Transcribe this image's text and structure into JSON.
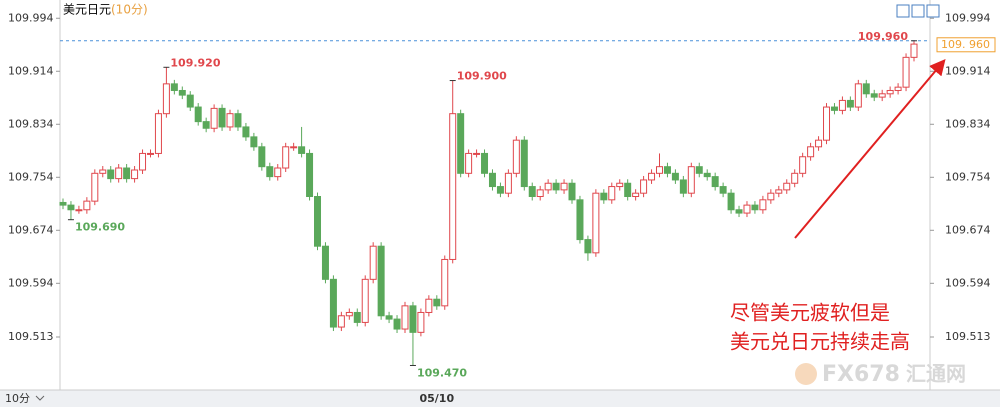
{
  "chart_data": {
    "type": "candlestick",
    "title": "美元日元",
    "subtitle": "(10分)",
    "interval_label": "10分",
    "ylim": [
      109.433,
      110.014
    ],
    "yticks": [
      109.994,
      109.914,
      109.834,
      109.754,
      109.674,
      109.594,
      109.513
    ],
    "up_color": "#e0474c",
    "down_color": "#5aa85a",
    "categories": [
      null,
      null,
      null,
      null,
      null,
      null,
      null,
      null,
      null,
      null,
      null,
      null,
      null,
      null,
      null,
      null,
      null,
      null,
      null,
      null,
      null,
      null,
      null,
      null,
      null,
      null,
      null,
      null,
      null,
      null,
      null,
      null,
      null,
      null,
      null,
      null,
      null,
      null,
      null,
      null,
      null,
      null,
      null,
      null,
      null,
      null,
      null,
      "05/10",
      null,
      null,
      null,
      null,
      null,
      null,
      null,
      null,
      null,
      null,
      null,
      null,
      null,
      null,
      null,
      null,
      null,
      null,
      null,
      null,
      null,
      null,
      null,
      null,
      null,
      null,
      null,
      null,
      null,
      null,
      null,
      null,
      null,
      null,
      null,
      null,
      null,
      null,
      null,
      null,
      null,
      null,
      null,
      null,
      null,
      null,
      null,
      null,
      null,
      null,
      null,
      null,
      null,
      null,
      null,
      null,
      null,
      null,
      null,
      null
    ],
    "values": [
      [
        109.716,
        109.722,
        109.706,
        109.712
      ],
      [
        109.712,
        109.718,
        109.69,
        109.705
      ],
      [
        109.705,
        109.711,
        109.699,
        109.705
      ],
      [
        109.705,
        109.724,
        109.699,
        109.718
      ],
      [
        109.718,
        109.766,
        109.712,
        109.76
      ],
      [
        109.76,
        109.771,
        109.754,
        109.765
      ],
      [
        109.765,
        109.771,
        109.746,
        109.752
      ],
      [
        109.752,
        109.774,
        109.746,
        109.768
      ],
      [
        109.768,
        109.774,
        109.746,
        109.752
      ],
      [
        109.752,
        109.771,
        109.746,
        109.765
      ],
      [
        109.765,
        109.796,
        109.759,
        109.79
      ],
      [
        109.79,
        109.796,
        109.784,
        109.79
      ],
      [
        109.79,
        109.856,
        109.784,
        109.85
      ],
      [
        109.85,
        109.92,
        109.844,
        109.895
      ],
      [
        109.895,
        109.901,
        109.879,
        109.885
      ],
      [
        109.885,
        109.891,
        109.872,
        109.878
      ],
      [
        109.878,
        109.884,
        109.854,
        109.86
      ],
      [
        109.86,
        109.866,
        109.832,
        109.838
      ],
      [
        109.838,
        109.844,
        109.822,
        109.828
      ],
      [
        109.828,
        109.864,
        109.822,
        109.858
      ],
      [
        109.858,
        109.864,
        109.824,
        109.83
      ],
      [
        109.83,
        109.856,
        109.824,
        109.85
      ],
      [
        109.85,
        109.856,
        109.824,
        109.83
      ],
      [
        109.83,
        109.836,
        109.809,
        109.815
      ],
      [
        109.815,
        109.821,
        109.794,
        109.8
      ],
      [
        109.8,
        109.806,
        109.764,
        109.77
      ],
      [
        109.77,
        109.776,
        109.749,
        109.755
      ],
      [
        109.755,
        109.774,
        109.749,
        109.768
      ],
      [
        109.768,
        109.806,
        109.762,
        109.8
      ],
      [
        109.8,
        109.806,
        109.794,
        109.8
      ],
      [
        109.8,
        109.83,
        109.784,
        109.79
      ],
      [
        109.79,
        109.796,
        109.719,
        109.725
      ],
      [
        109.725,
        109.731,
        109.644,
        109.65
      ],
      [
        109.65,
        109.656,
        109.594,
        109.6
      ],
      [
        109.6,
        109.606,
        109.522,
        109.528
      ],
      [
        109.528,
        109.551,
        109.522,
        109.545
      ],
      [
        109.545,
        109.556,
        109.539,
        109.55
      ],
      [
        109.55,
        109.556,
        109.529,
        109.535
      ],
      [
        109.535,
        109.606,
        109.529,
        109.6
      ],
      [
        109.6,
        109.656,
        109.594,
        109.65
      ],
      [
        109.65,
        109.656,
        109.539,
        109.545
      ],
      [
        109.545,
        109.551,
        109.534,
        109.54
      ],
      [
        109.54,
        109.546,
        109.519,
        109.525
      ],
      [
        109.525,
        109.566,
        109.519,
        109.56
      ],
      [
        109.56,
        109.566,
        109.47,
        109.52
      ],
      [
        109.52,
        109.556,
        109.514,
        109.55
      ],
      [
        109.55,
        109.576,
        109.544,
        109.57
      ],
      [
        109.57,
        109.576,
        109.554,
        109.56
      ],
      [
        109.56,
        109.636,
        109.554,
        109.63
      ],
      [
        109.63,
        109.9,
        109.624,
        109.85
      ],
      [
        109.85,
        109.856,
        109.754,
        109.76
      ],
      [
        109.76,
        109.796,
        109.754,
        109.79
      ],
      [
        109.79,
        109.796,
        109.784,
        109.79
      ],
      [
        109.79,
        109.796,
        109.754,
        109.76
      ],
      [
        109.76,
        109.766,
        109.734,
        109.74
      ],
      [
        109.74,
        109.746,
        109.724,
        109.73
      ],
      [
        109.73,
        109.766,
        109.724,
        109.76
      ],
      [
        109.76,
        109.816,
        109.754,
        109.81
      ],
      [
        109.81,
        109.816,
        109.734,
        109.74
      ],
      [
        109.74,
        109.746,
        109.719,
        109.725
      ],
      [
        109.725,
        109.741,
        109.719,
        109.735
      ],
      [
        109.735,
        109.751,
        109.729,
        109.745
      ],
      [
        109.745,
        109.751,
        109.729,
        109.735
      ],
      [
        109.735,
        109.751,
        109.729,
        109.745
      ],
      [
        109.745,
        109.751,
        109.714,
        109.72
      ],
      [
        109.72,
        109.726,
        109.654,
        109.66
      ],
      [
        109.66,
        109.666,
        109.628,
        109.64
      ],
      [
        109.64,
        109.736,
        109.634,
        109.73
      ],
      [
        109.73,
        109.736,
        109.714,
        109.72
      ],
      [
        109.72,
        109.746,
        109.714,
        109.74
      ],
      [
        109.74,
        109.751,
        109.734,
        109.745
      ],
      [
        109.745,
        109.751,
        109.719,
        109.725
      ],
      [
        109.725,
        109.736,
        109.719,
        109.73
      ],
      [
        109.73,
        109.756,
        109.724,
        109.75
      ],
      [
        109.75,
        109.766,
        109.744,
        109.76
      ],
      [
        109.76,
        109.79,
        109.754,
        109.77
      ],
      [
        109.77,
        109.776,
        109.754,
        109.76
      ],
      [
        109.76,
        109.766,
        109.744,
        109.75
      ],
      [
        109.75,
        109.756,
        109.724,
        109.73
      ],
      [
        109.73,
        109.776,
        109.724,
        109.77
      ],
      [
        109.77,
        109.776,
        109.754,
        109.76
      ],
      [
        109.76,
        109.766,
        109.749,
        109.755
      ],
      [
        109.755,
        109.761,
        109.734,
        109.74
      ],
      [
        109.74,
        109.746,
        109.724,
        109.73
      ],
      [
        109.73,
        109.736,
        109.699,
        109.705
      ],
      [
        109.705,
        109.711,
        109.694,
        109.7
      ],
      [
        109.7,
        109.718,
        109.694,
        109.712
      ],
      [
        109.712,
        109.718,
        109.699,
        109.705
      ],
      [
        109.705,
        109.726,
        109.699,
        109.72
      ],
      [
        109.72,
        109.736,
        109.714,
        109.73
      ],
      [
        109.73,
        109.741,
        109.724,
        109.735
      ],
      [
        109.735,
        109.751,
        109.729,
        109.745
      ],
      [
        109.745,
        109.766,
        109.739,
        109.76
      ],
      [
        109.76,
        109.791,
        109.754,
        109.785
      ],
      [
        109.785,
        109.806,
        109.779,
        109.8
      ],
      [
        109.8,
        109.816,
        109.794,
        109.81
      ],
      [
        109.81,
        109.866,
        109.804,
        109.86
      ],
      [
        109.86,
        109.866,
        109.849,
        109.855
      ],
      [
        109.855,
        109.876,
        109.849,
        109.87
      ],
      [
        109.87,
        109.876,
        109.854,
        109.86
      ],
      [
        109.86,
        109.901,
        109.854,
        109.895
      ],
      [
        109.895,
        109.901,
        109.874,
        109.88
      ],
      [
        109.88,
        109.886,
        109.869,
        109.875
      ],
      [
        109.875,
        109.886,
        109.869,
        109.88
      ],
      [
        109.88,
        109.891,
        109.874,
        109.885
      ],
      [
        109.885,
        109.896,
        109.879,
        109.89
      ],
      [
        109.89,
        109.941,
        109.884,
        109.935
      ],
      [
        109.935,
        109.96,
        109.929,
        109.955
      ]
    ],
    "annotations": [
      {
        "value": 109.92,
        "label": "109.920"
      },
      {
        "value": 109.69,
        "label": "109.690"
      },
      {
        "value": 109.47,
        "label": "109.470"
      },
      {
        "value": 109.9,
        "label": "109.900"
      },
      {
        "value": 109.96,
        "label": "109.960"
      }
    ],
    "last_price": {
      "value": 109.96,
      "label": "109. 960"
    },
    "note": [
      "尽管美元疲软但是",
      "美元兑日元持续走高"
    ],
    "watermark": [
      "FX678",
      "汇通网"
    ]
  }
}
